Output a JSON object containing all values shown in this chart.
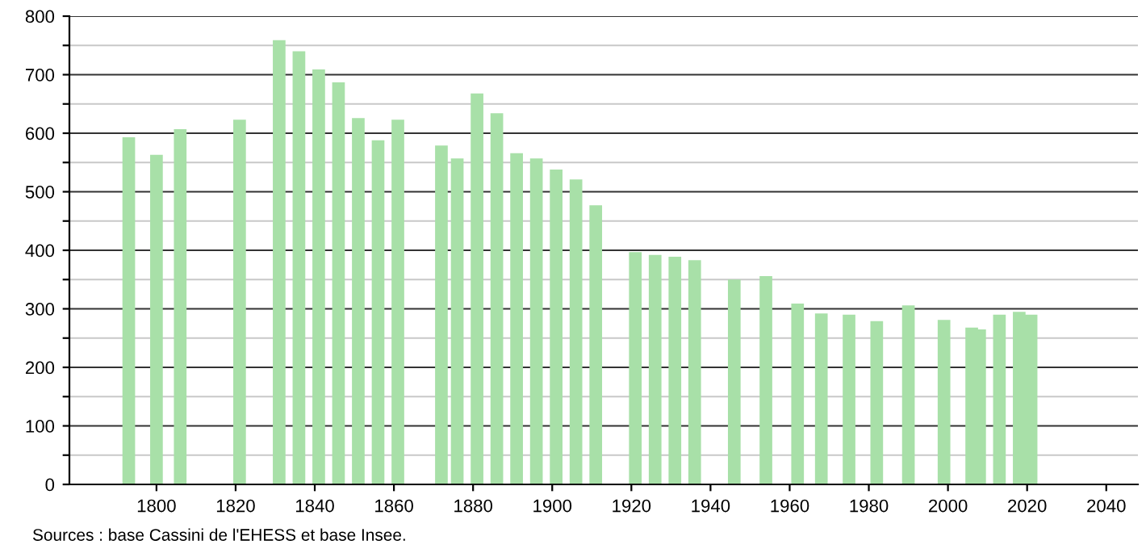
{
  "chart_data": {
    "type": "bar",
    "x": [
      1793,
      1800,
      1806,
      1821,
      1831,
      1836,
      1841,
      1846,
      1851,
      1856,
      1861,
      1872,
      1876,
      1881,
      1886,
      1891,
      1896,
      1901,
      1906,
      1911,
      1921,
      1926,
      1931,
      1936,
      1946,
      1954,
      1962,
      1968,
      1975,
      1982,
      1990,
      1999,
      2006,
      2008,
      2013,
      2018,
      2021
    ],
    "values": [
      593,
      563,
      607,
      623,
      759,
      740,
      709,
      687,
      626,
      588,
      623,
      579,
      557,
      668,
      634,
      566,
      557,
      538,
      521,
      477,
      397,
      392,
      389,
      383,
      350,
      356,
      309,
      292,
      290,
      279,
      306,
      281,
      268,
      265,
      290,
      295,
      290
    ],
    "color": "#a8e0a8",
    "xlim": [
      1778,
      2048
    ],
    "xticks": [
      1800,
      1820,
      1840,
      1860,
      1880,
      1900,
      1920,
      1940,
      1960,
      1980,
      2000,
      2020,
      2040
    ],
    "ylim": [
      0,
      800
    ],
    "yticks": [
      0,
      {
        "value": 50,
        "label": null
      },
      100,
      {
        "value": 150,
        "label": null
      },
      200,
      {
        "value": 250,
        "label": null
      },
      300,
      {
        "value": 350,
        "label": null
      },
      400,
      {
        "value": 450,
        "label": null
      },
      500,
      {
        "value": 550,
        "label": null
      },
      600,
      {
        "value": 650,
        "label": null
      },
      700,
      {
        "value": 750,
        "label": null
      },
      800
    ],
    "grid": "y",
    "annotations": [
      "Sources : base Cassini de l'EHESS et base Insee."
    ]
  }
}
